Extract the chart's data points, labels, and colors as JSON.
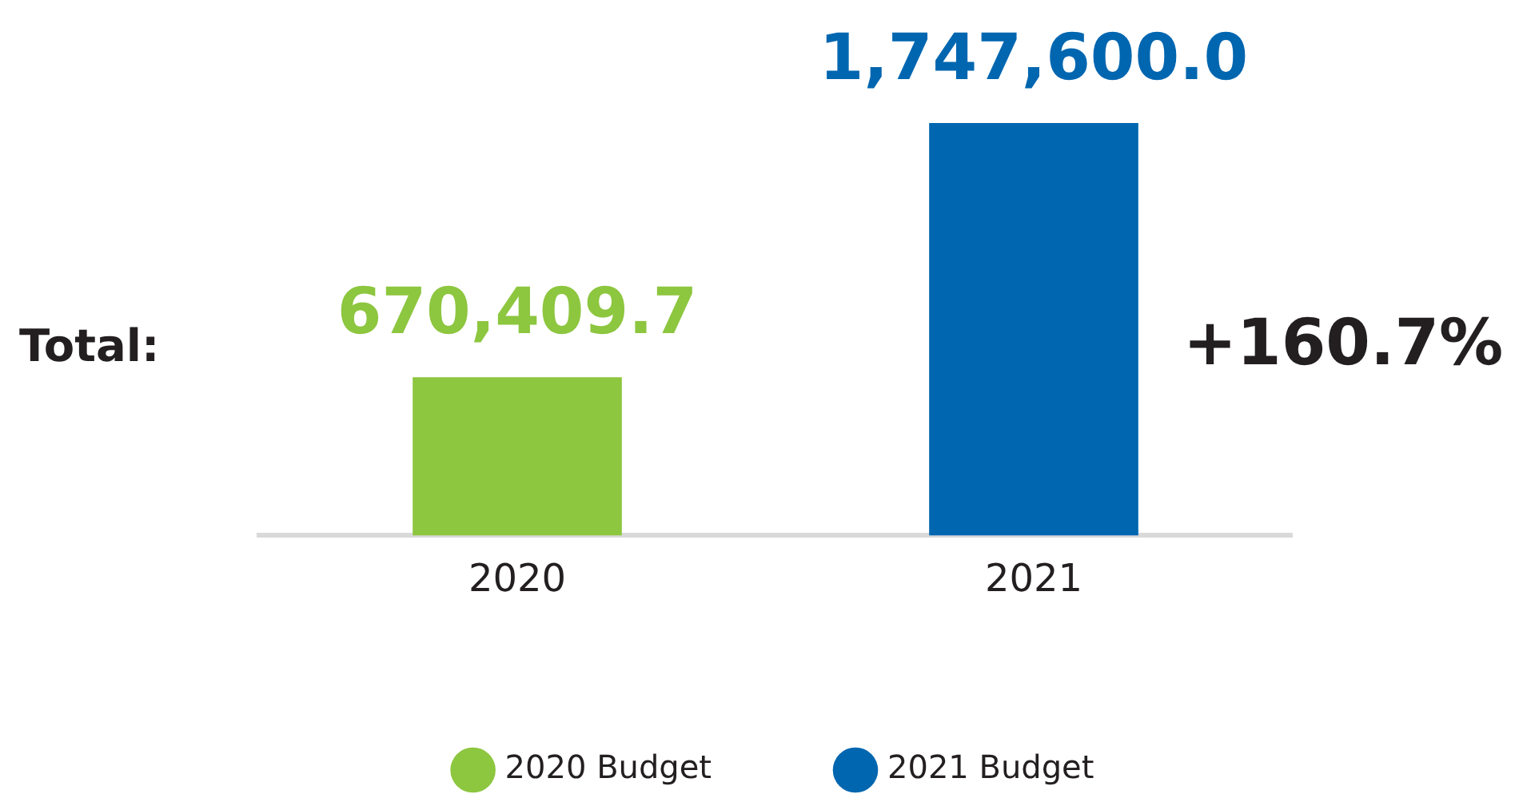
{
  "chart_data": {
    "type": "bar",
    "categories": [
      "2020",
      "2021"
    ],
    "series": [
      {
        "name": "2020 Budget",
        "color": "#8dc63f",
        "values": [
          670409.7,
          null
        ],
        "value_labels": [
          "670,409.7",
          null
        ]
      },
      {
        "name": "2021 Budget",
        "color": "#0066b0",
        "values": [
          null,
          1747600.0
        ],
        "value_labels": [
          null,
          "1,747,600.0"
        ]
      }
    ],
    "legend": "bottom",
    "grid": false,
    "tick_labels": "x",
    "annotations": [
      "Total:",
      "+160.7%"
    ]
  }
}
